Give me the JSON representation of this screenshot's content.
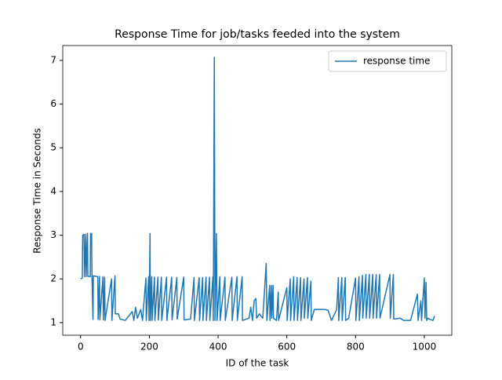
{
  "chart_data": {
    "type": "line",
    "title": "Response Time for job/tasks feeded into the system",
    "x_label": "ID of the task",
    "y_label": "Response Time in Seconds",
    "x": [
      0,
      5,
      6,
      10,
      11,
      15,
      16,
      20,
      21,
      28,
      29,
      32,
      33,
      36,
      37,
      50,
      51,
      55,
      56,
      65,
      66,
      70,
      71,
      90,
      91,
      100,
      101,
      110,
      115,
      130,
      140,
      150,
      155,
      160,
      165,
      175,
      180,
      190,
      191,
      198,
      199,
      202,
      203,
      207,
      208,
      215,
      216,
      225,
      226,
      235,
      236,
      250,
      251,
      265,
      266,
      280,
      281,
      300,
      301,
      320,
      330,
      331,
      345,
      346,
      355,
      356,
      365,
      366,
      375,
      376,
      385,
      386,
      389,
      391,
      393,
      395,
      397,
      405,
      406,
      420,
      421,
      440,
      441,
      455,
      456,
      470,
      471,
      490,
      495,
      500,
      505,
      510,
      512,
      520,
      530,
      540,
      542,
      550,
      551,
      555,
      556,
      560,
      561,
      570,
      575,
      576,
      600,
      601,
      610,
      611,
      620,
      621,
      630,
      631,
      640,
      641,
      650,
      651,
      660,
      661,
      670,
      671,
      680,
      690,
      700,
      710,
      720,
      730,
      745,
      750,
      751,
      760,
      761,
      770,
      771,
      780,
      800,
      801,
      810,
      811,
      820,
      821,
      830,
      831,
      840,
      841,
      850,
      851,
      860,
      861,
      870,
      871,
      900,
      901,
      910,
      911,
      930,
      940,
      960,
      980,
      982,
      990,
      992,
      1000,
      1002,
      1005,
      1007,
      1010,
      1015,
      1025,
      1030
    ],
    "series": [
      {
        "name": "response time",
        "color": "#1f77b4",
        "values": [
          2.0,
          2.02,
          3.0,
          3.02,
          2.05,
          3.02,
          2.05,
          3.04,
          2.06,
          2.05,
          3.04,
          3.04,
          2.08,
          1.07,
          2.07,
          2.05,
          1.07,
          2.06,
          1.06,
          2.05,
          1.06,
          2.04,
          1.05,
          2.0,
          1.05,
          2.07,
          1.2,
          1.2,
          1.08,
          1.05,
          1.15,
          1.25,
          1.05,
          1.35,
          1.1,
          1.3,
          1.05,
          2.02,
          1.05,
          2.05,
          1.05,
          3.04,
          1.05,
          2.05,
          1.05,
          2.04,
          1.05,
          2.04,
          1.06,
          2.04,
          1.05,
          2.04,
          1.05,
          2.04,
          1.06,
          2.03,
          1.08,
          2.04,
          1.06,
          1.08,
          2.03,
          1.05,
          2.03,
          1.05,
          2.03,
          1.05,
          2.04,
          1.05,
          2.04,
          1.05,
          2.05,
          1.05,
          7.07,
          1.05,
          2.1,
          3.04,
          1.05,
          2.05,
          1.05,
          2.04,
          1.05,
          2.04,
          1.05,
          2.05,
          1.05,
          2.05,
          1.05,
          1.1,
          1.35,
          1.05,
          1.5,
          1.55,
          1.1,
          1.2,
          1.1,
          2.35,
          1.05,
          1.85,
          1.05,
          1.85,
          1.1,
          1.85,
          1.1,
          1.05,
          1.7,
          1.05,
          1.8,
          1.05,
          2.0,
          1.05,
          2.05,
          1.05,
          2.03,
          1.05,
          2.03,
          1.05,
          2.0,
          1.1,
          2.03,
          1.1,
          1.95,
          1.05,
          1.3,
          1.3,
          1.3,
          1.3,
          1.28,
          1.05,
          1.3,
          2.03,
          1.05,
          2.03,
          1.05,
          2.03,
          1.05,
          1.1,
          2.02,
          1.05,
          2.05,
          1.05,
          2.08,
          1.1,
          2.1,
          1.1,
          2.1,
          1.1,
          2.1,
          1.1,
          2.1,
          1.1,
          2.1,
          1.1,
          2.1,
          1.1,
          2.1,
          1.08,
          1.1,
          1.05,
          1.05,
          1.65,
          1.05,
          1.5,
          1.05,
          2.02,
          1.1,
          1.92,
          1.05,
          1.1,
          1.08,
          1.05,
          1.15
        ]
      }
    ],
    "xlim": [
      -52,
      1080
    ],
    "ylim": [
      0.71,
      7.34
    ],
    "xticks": [
      0,
      200,
      400,
      600,
      800,
      1000
    ],
    "yticks": [
      1,
      2,
      3,
      4,
      5,
      6,
      7
    ],
    "legend": "upper right"
  }
}
